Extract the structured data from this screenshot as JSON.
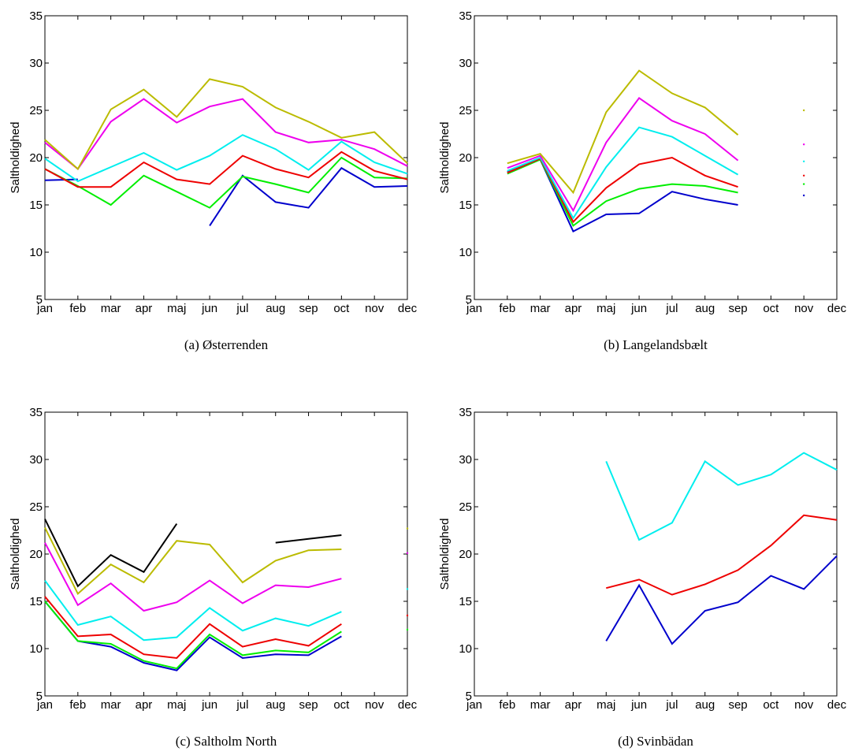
{
  "chart_data": [
    {
      "type": "line",
      "caption": "(a) Østerrenden",
      "ylabel": "Saltholdighed",
      "categories": [
        "jan",
        "feb",
        "mar",
        "apr",
        "maj",
        "jun",
        "jul",
        "aug",
        "sep",
        "oct",
        "nov",
        "dec"
      ],
      "ylim": [
        5,
        35
      ],
      "yticks": [
        5,
        10,
        15,
        20,
        25,
        30,
        35
      ],
      "grid": false,
      "series": [
        {
          "color": "#0000cc",
          "values": [
            17.6,
            17.7,
            null,
            null,
            null,
            12.8,
            18.1,
            15.3,
            14.7,
            18.9,
            16.9,
            17.0
          ]
        },
        {
          "color": "#00ee00",
          "values": [
            18.8,
            17.0,
            15.0,
            18.1,
            16.4,
            14.7,
            18.0,
            17.2,
            16.3,
            20.0,
            17.9,
            17.8
          ]
        },
        {
          "color": "#ee0000",
          "values": [
            18.8,
            16.9,
            16.9,
            19.5,
            17.7,
            17.2,
            20.2,
            18.8,
            17.9,
            20.6,
            18.6,
            17.7
          ]
        },
        {
          "color": "#00eeee",
          "values": [
            19.9,
            17.5,
            19.0,
            20.5,
            18.7,
            20.2,
            22.4,
            20.9,
            18.7,
            21.7,
            19.5,
            18.3
          ]
        },
        {
          "color": "#ee00ee",
          "values": [
            21.6,
            18.8,
            23.8,
            26.2,
            23.7,
            25.4,
            26.2,
            22.7,
            21.6,
            21.9,
            20.9,
            19.1
          ]
        },
        {
          "color": "#bbbb00",
          "values": [
            21.9,
            18.8,
            25.1,
            27.2,
            24.3,
            28.3,
            27.5,
            25.3,
            23.8,
            22.1,
            22.7,
            19.4
          ]
        }
      ]
    },
    {
      "type": "line",
      "caption": "(b) Langelandsbælt",
      "ylabel": "Saltholdighed",
      "categories": [
        "jan",
        "feb",
        "mar",
        "apr",
        "maj",
        "jun",
        "jul",
        "aug",
        "sep",
        "oct",
        "nov",
        "dec"
      ],
      "ylim": [
        5,
        35
      ],
      "yticks": [
        5,
        10,
        15,
        20,
        25,
        30,
        35
      ],
      "grid": false,
      "series": [
        {
          "color": "#0000cc",
          "values": [
            null,
            18.5,
            19.8,
            12.2,
            14.0,
            14.1,
            16.4,
            15.6,
            15.0,
            null,
            16.0,
            null
          ]
        },
        {
          "color": "#00ee00",
          "values": [
            null,
            18.3,
            19.8,
            12.8,
            15.4,
            16.7,
            17.2,
            17.0,
            16.3,
            null,
            17.2,
            null
          ]
        },
        {
          "color": "#ee0000",
          "values": [
            null,
            18.4,
            19.9,
            13.2,
            16.8,
            19.3,
            20.0,
            18.1,
            16.9,
            null,
            18.1,
            null
          ]
        },
        {
          "color": "#00eeee",
          "values": [
            null,
            18.6,
            20.0,
            13.6,
            19.0,
            23.2,
            22.2,
            20.2,
            18.2,
            null,
            19.6,
            null
          ]
        },
        {
          "color": "#ee00ee",
          "values": [
            null,
            18.9,
            20.2,
            14.4,
            21.6,
            26.3,
            23.9,
            22.5,
            19.7,
            null,
            21.4,
            null
          ]
        },
        {
          "color": "#bbbb00",
          "values": [
            null,
            19.4,
            20.4,
            16.3,
            24.8,
            29.2,
            26.8,
            25.3,
            22.4,
            null,
            25.0,
            null
          ]
        }
      ]
    },
    {
      "type": "line",
      "caption": "(c) Saltholm North",
      "ylabel": "Saltholdighed",
      "categories": [
        "jan",
        "feb",
        "mar",
        "apr",
        "maj",
        "jun",
        "jul",
        "aug",
        "sep",
        "oct",
        "nov",
        "dec"
      ],
      "ylim": [
        5,
        35
      ],
      "yticks": [
        5,
        10,
        15,
        20,
        25,
        30,
        35
      ],
      "grid": false,
      "series": [
        {
          "color": "#0000cc",
          "values": [
            15.0,
            10.8,
            10.2,
            8.5,
            7.7,
            11.2,
            9.0,
            9.4,
            9.3,
            11.3,
            null,
            null
          ]
        },
        {
          "color": "#00ee00",
          "values": [
            15.0,
            10.8,
            10.5,
            8.7,
            7.9,
            11.5,
            9.3,
            9.8,
            9.6,
            11.8,
            null,
            12.0
          ]
        },
        {
          "color": "#ee0000",
          "values": [
            15.5,
            11.3,
            11.5,
            9.4,
            9.0,
            12.6,
            10.2,
            11.0,
            10.3,
            12.6,
            null,
            13.5
          ]
        },
        {
          "color": "#00eeee",
          "values": [
            17.2,
            12.5,
            13.4,
            10.9,
            11.2,
            14.3,
            11.9,
            13.2,
            12.4,
            13.9,
            null,
            16.3
          ]
        },
        {
          "color": "#ee00ee",
          "values": [
            21.2,
            14.6,
            16.9,
            14.0,
            14.9,
            17.2,
            14.8,
            16.7,
            16.5,
            17.4,
            null,
            20.1
          ]
        },
        {
          "color": "#bbbb00",
          "values": [
            22.8,
            15.8,
            18.9,
            17.0,
            21.4,
            21.0,
            17.0,
            19.3,
            20.4,
            20.5,
            null,
            22.7
          ]
        },
        {
          "color": "#000000",
          "values": [
            23.7,
            16.6,
            19.9,
            18.1,
            23.2,
            null,
            null,
            21.2,
            21.6,
            22.0,
            null,
            null
          ]
        }
      ]
    },
    {
      "type": "line",
      "caption": "(d) Svinbädan",
      "ylabel": "Saltholdighed",
      "categories": [
        "jan",
        "feb",
        "mar",
        "apr",
        "maj",
        "jun",
        "jul",
        "aug",
        "sep",
        "oct",
        "nov",
        "dec"
      ],
      "ylim": [
        5,
        35
      ],
      "yticks": [
        5,
        10,
        15,
        20,
        25,
        30,
        35
      ],
      "grid": false,
      "series": [
        {
          "color": "#0000cc",
          "values": [
            null,
            null,
            null,
            null,
            10.8,
            16.7,
            10.5,
            14.0,
            14.9,
            17.7,
            16.3,
            19.8
          ]
        },
        {
          "color": "#ee0000",
          "values": [
            null,
            null,
            null,
            null,
            16.4,
            17.3,
            15.7,
            16.8,
            18.3,
            20.9,
            24.1,
            23.6
          ]
        },
        {
          "color": "#00eeee",
          "values": [
            null,
            null,
            null,
            null,
            29.8,
            21.5,
            23.3,
            29.8,
            27.3,
            28.4,
            30.7,
            28.9
          ]
        }
      ]
    }
  ]
}
